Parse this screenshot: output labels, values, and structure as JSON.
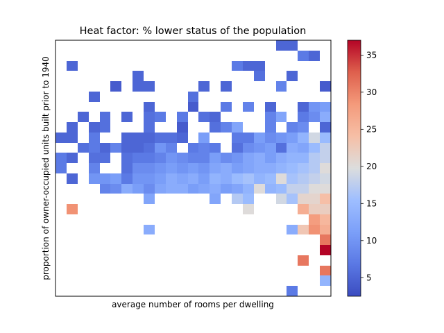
{
  "chart_data": {
    "type": "heatmap",
    "title": "Heat factor: % lower status of the population",
    "xlabel": "average number of rooms per dwelling",
    "ylabel": "proportion of owner-occupied units built prior to 1940",
    "x_ticks_shown": false,
    "y_ticks_shown": false,
    "grid": false,
    "grid_size": {
      "cols": 25,
      "rows": 25
    },
    "row_order": "top-to-bottom",
    "colorbar": {
      "colormap": "coolwarm",
      "vmin": 2.5,
      "vmax": 37,
      "ticks": [
        "5",
        "10",
        "15",
        "20",
        "25",
        "30",
        "35"
      ],
      "tick_values": [
        5,
        10,
        15,
        20,
        25,
        30,
        35
      ]
    },
    "cells": [
      [
        20,
        0,
        5
      ],
      [
        21,
        0,
        5
      ],
      [
        22,
        1,
        7
      ],
      [
        23,
        1,
        5
      ],
      [
        1,
        2,
        5
      ],
      [
        16,
        2,
        7
      ],
      [
        17,
        2,
        5
      ],
      [
        18,
        2,
        5
      ],
      [
        7,
        3,
        5
      ],
      [
        18,
        3,
        6
      ],
      [
        21,
        3,
        5
      ],
      [
        5,
        4,
        4
      ],
      [
        7,
        4,
        5
      ],
      [
        8,
        4,
        5
      ],
      [
        13,
        4,
        5
      ],
      [
        15,
        4,
        5
      ],
      [
        20,
        4,
        8
      ],
      [
        24,
        4,
        4
      ],
      [
        3,
        5,
        5
      ],
      [
        12,
        5,
        6
      ],
      [
        8,
        6,
        5
      ],
      [
        12,
        6,
        4
      ],
      [
        15,
        6,
        7
      ],
      [
        17,
        6,
        8
      ],
      [
        19,
        6,
        5
      ],
      [
        22,
        6,
        5
      ],
      [
        23,
        6,
        10
      ],
      [
        24,
        6,
        11
      ],
      [
        2,
        7,
        5
      ],
      [
        4,
        7,
        6
      ],
      [
        6,
        7,
        5
      ],
      [
        8,
        7,
        6
      ],
      [
        9,
        7,
        7
      ],
      [
        11,
        7,
        7
      ],
      [
        13,
        7,
        6
      ],
      [
        14,
        7,
        5
      ],
      [
        19,
        7,
        8
      ],
      [
        20,
        7,
        12
      ],
      [
        22,
        7,
        7
      ],
      [
        23,
        7,
        9
      ],
      [
        24,
        7,
        13
      ],
      [
        1,
        8,
        5
      ],
      [
        3,
        8,
        5
      ],
      [
        4,
        8,
        6
      ],
      [
        8,
        8,
        6
      ],
      [
        11,
        8,
        4
      ],
      [
        14,
        8,
        6
      ],
      [
        15,
        8,
        8
      ],
      [
        16,
        8,
        12
      ],
      [
        19,
        8,
        8
      ],
      [
        21,
        8,
        8
      ],
      [
        22,
        8,
        9
      ],
      [
        24,
        8,
        5
      ],
      [
        0,
        9,
        5
      ],
      [
        1,
        9,
        5
      ],
      [
        3,
        9,
        7
      ],
      [
        6,
        9,
        5
      ],
      [
        7,
        9,
        5
      ],
      [
        8,
        9,
        5
      ],
      [
        9,
        9,
        6
      ],
      [
        10,
        9,
        6
      ],
      [
        11,
        9,
        5
      ],
      [
        13,
        9,
        11
      ],
      [
        16,
        9,
        7
      ],
      [
        17,
        9,
        7
      ],
      [
        18,
        9,
        11
      ],
      [
        19,
        9,
        9
      ],
      [
        20,
        9,
        10
      ],
      [
        21,
        9,
        11
      ],
      [
        22,
        9,
        14
      ],
      [
        23,
        9,
        19
      ],
      [
        24,
        9,
        15
      ],
      [
        2,
        10,
        6
      ],
      [
        3,
        10,
        7
      ],
      [
        4,
        10,
        5
      ],
      [
        5,
        10,
        8
      ],
      [
        6,
        10,
        5
      ],
      [
        7,
        10,
        5
      ],
      [
        8,
        10,
        6
      ],
      [
        9,
        10,
        10
      ],
      [
        10,
        10,
        8
      ],
      [
        12,
        10,
        7
      ],
      [
        13,
        10,
        8
      ],
      [
        14,
        10,
        7
      ],
      [
        16,
        10,
        6
      ],
      [
        17,
        10,
        9
      ],
      [
        18,
        10,
        10
      ],
      [
        19,
        10,
        11
      ],
      [
        20,
        10,
        6
      ],
      [
        21,
        10,
        13
      ],
      [
        22,
        10,
        12
      ],
      [
        23,
        10,
        15
      ],
      [
        24,
        10,
        18
      ],
      [
        0,
        11,
        7
      ],
      [
        1,
        11,
        5
      ],
      [
        3,
        11,
        6
      ],
      [
        4,
        11,
        6
      ],
      [
        6,
        11,
        6
      ],
      [
        7,
        11,
        7
      ],
      [
        8,
        11,
        7
      ],
      [
        9,
        11,
        8
      ],
      [
        10,
        11,
        10
      ],
      [
        11,
        11,
        9
      ],
      [
        12,
        11,
        8
      ],
      [
        13,
        11,
        8
      ],
      [
        14,
        11,
        11
      ],
      [
        15,
        11,
        9
      ],
      [
        16,
        11,
        10
      ],
      [
        17,
        11,
        12
      ],
      [
        18,
        11,
        13
      ],
      [
        19,
        11,
        11
      ],
      [
        20,
        11,
        13
      ],
      [
        21,
        11,
        14
      ],
      [
        22,
        11,
        14
      ],
      [
        23,
        11,
        17
      ],
      [
        24,
        11,
        18
      ],
      [
        0,
        12,
        7
      ],
      [
        3,
        12,
        8
      ],
      [
        6,
        12,
        6
      ],
      [
        7,
        12,
        9
      ],
      [
        8,
        12,
        9
      ],
      [
        9,
        12,
        10
      ],
      [
        10,
        12,
        11
      ],
      [
        11,
        12,
        10
      ],
      [
        12,
        12,
        11
      ],
      [
        13,
        12,
        10
      ],
      [
        14,
        12,
        12
      ],
      [
        15,
        12,
        13
      ],
      [
        16,
        12,
        11
      ],
      [
        17,
        12,
        12
      ],
      [
        18,
        12,
        13
      ],
      [
        19,
        12,
        13
      ],
      [
        20,
        12,
        14
      ],
      [
        21,
        12,
        15
      ],
      [
        22,
        12,
        16
      ],
      [
        23,
        12,
        17
      ],
      [
        24,
        12,
        20
      ],
      [
        1,
        13,
        5
      ],
      [
        3,
        13,
        10
      ],
      [
        4,
        13,
        10
      ],
      [
        5,
        13,
        11
      ],
      [
        6,
        13,
        7
      ],
      [
        7,
        13,
        10
      ],
      [
        8,
        13,
        10
      ],
      [
        9,
        13,
        11
      ],
      [
        10,
        13,
        13
      ],
      [
        11,
        13,
        12
      ],
      [
        12,
        13,
        13
      ],
      [
        13,
        13,
        11
      ],
      [
        14,
        13,
        14
      ],
      [
        15,
        13,
        13
      ],
      [
        16,
        13,
        15
      ],
      [
        17,
        13,
        16
      ],
      [
        18,
        13,
        14
      ],
      [
        19,
        13,
        15
      ],
      [
        20,
        13,
        20
      ],
      [
        21,
        13,
        16
      ],
      [
        22,
        13,
        17
      ],
      [
        23,
        13,
        18
      ],
      [
        24,
        13,
        19
      ],
      [
        4,
        14,
        8
      ],
      [
        5,
        14,
        9
      ],
      [
        6,
        14,
        13
      ],
      [
        7,
        14,
        11
      ],
      [
        8,
        14,
        9
      ],
      [
        9,
        14,
        12
      ],
      [
        10,
        14,
        13
      ],
      [
        11,
        14,
        13
      ],
      [
        12,
        14,
        11
      ],
      [
        13,
        14,
        12
      ],
      [
        14,
        14,
        13
      ],
      [
        15,
        14,
        11
      ],
      [
        16,
        14,
        12
      ],
      [
        17,
        14,
        14
      ],
      [
        18,
        14,
        20
      ],
      [
        19,
        14,
        14
      ],
      [
        20,
        14,
        15
      ],
      [
        21,
        14,
        18
      ],
      [
        22,
        14,
        18
      ],
      [
        23,
        14,
        20
      ],
      [
        24,
        14,
        20
      ],
      [
        8,
        15,
        12
      ],
      [
        14,
        15,
        12
      ],
      [
        16,
        15,
        17
      ],
      [
        17,
        15,
        15
      ],
      [
        20,
        15,
        19
      ],
      [
        21,
        15,
        16
      ],
      [
        22,
        15,
        21
      ],
      [
        23,
        15,
        21
      ],
      [
        24,
        15,
        24
      ],
      [
        1,
        16,
        29
      ],
      [
        17,
        16,
        20
      ],
      [
        22,
        16,
        26
      ],
      [
        23,
        16,
        22
      ],
      [
        24,
        16,
        22
      ],
      [
        23,
        17,
        28
      ],
      [
        24,
        17,
        25
      ],
      [
        8,
        18,
        13
      ],
      [
        21,
        18,
        13
      ],
      [
        22,
        18,
        23
      ],
      [
        23,
        18,
        29
      ],
      [
        24,
        18,
        26
      ],
      [
        24,
        19,
        31
      ],
      [
        24,
        20,
        37
      ],
      [
        22,
        21,
        31
      ],
      [
        24,
        22,
        31
      ],
      [
        24,
        23,
        14
      ],
      [
        21,
        24,
        7
      ]
    ]
  }
}
